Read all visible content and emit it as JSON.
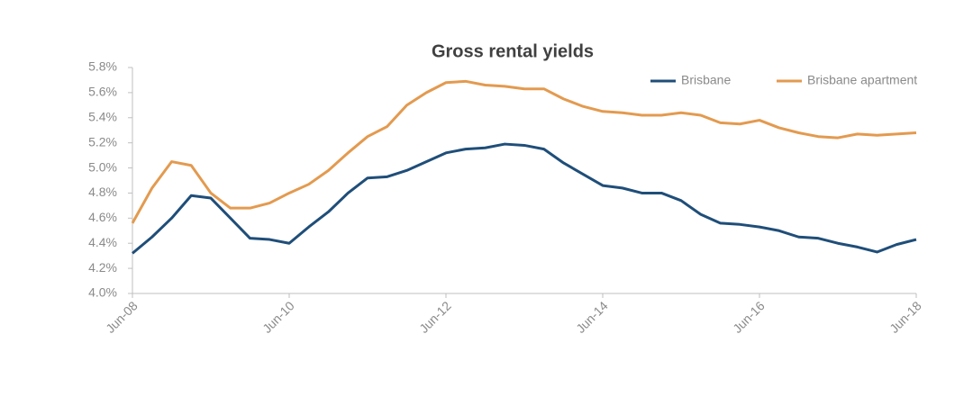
{
  "chart_data": {
    "type": "line",
    "title": "Gross rental yields",
    "categories": [
      "Jun-08",
      null,
      null,
      null,
      null,
      null,
      null,
      null,
      "Jun-10",
      null,
      null,
      null,
      null,
      null,
      null,
      null,
      "Jun-12",
      null,
      null,
      null,
      null,
      null,
      null,
      null,
      "Jun-14",
      null,
      null,
      null,
      null,
      null,
      null,
      null,
      "Jun-16",
      null,
      null,
      null,
      null,
      null,
      null,
      null,
      "Jun-18"
    ],
    "series": [
      {
        "name": "Brisbane",
        "color": "#1f4e79",
        "values": [
          4.32,
          4.45,
          4.6,
          4.78,
          4.76,
          4.6,
          4.44,
          4.43,
          4.4,
          4.53,
          4.65,
          4.8,
          4.92,
          4.93,
          4.98,
          5.05,
          5.12,
          5.15,
          5.16,
          5.19,
          5.18,
          5.15,
          5.04,
          4.95,
          4.86,
          4.84,
          4.8,
          4.8,
          4.74,
          4.63,
          4.56,
          4.55,
          4.53,
          4.5,
          4.45,
          4.44,
          4.4,
          4.37,
          4.33,
          4.39,
          4.43
        ]
      },
      {
        "name": "Brisbane apartment",
        "color": "#e39a4f",
        "values": [
          4.56,
          4.84,
          5.05,
          5.02,
          4.8,
          4.68,
          4.68,
          4.72,
          4.8,
          4.87,
          4.98,
          5.12,
          5.25,
          5.33,
          5.5,
          5.6,
          5.68,
          5.69,
          5.66,
          5.65,
          5.63,
          5.63,
          5.55,
          5.49,
          5.45,
          5.44,
          5.42,
          5.42,
          5.44,
          5.42,
          5.36,
          5.35,
          5.38,
          5.32,
          5.28,
          5.25,
          5.24,
          5.27,
          5.26,
          5.27,
          5.28
        ]
      }
    ],
    "ylim": [
      4.0,
      5.8
    ],
    "yticks": [
      {
        "value": 4.0,
        "label": "4.0%"
      },
      {
        "value": 4.2,
        "label": "4.2%"
      },
      {
        "value": 4.4,
        "label": "4.4%"
      },
      {
        "value": 4.6,
        "label": "4.6%"
      },
      {
        "value": 4.8,
        "label": "4.8%"
      },
      {
        "value": 5.0,
        "label": "5.0%"
      },
      {
        "value": 5.2,
        "label": "5.2%"
      },
      {
        "value": 5.4,
        "label": "5.4%"
      },
      {
        "value": 5.6,
        "label": "5.6%"
      },
      {
        "value": 5.8,
        "label": "5.8%"
      }
    ],
    "grid": false,
    "legend": "top-right"
  }
}
